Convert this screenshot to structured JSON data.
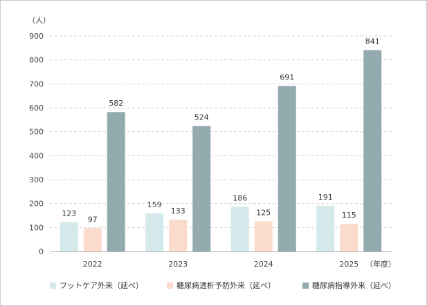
{
  "chart_data": {
    "type": "bar",
    "ylabel": "（人）",
    "xlabel": "（年度）",
    "categories": [
      "2022",
      "2023",
      "2024",
      "2025"
    ],
    "ylim": [
      0,
      900
    ],
    "yticks": [
      0,
      100,
      200,
      300,
      400,
      500,
      600,
      700,
      800,
      900
    ],
    "grid": "horizontal-dashed",
    "legend_position": "bottom",
    "series": [
      {
        "name": "フットケア外来（延べ）",
        "values": [
          123,
          159,
          186,
          191
        ],
        "color": "#d5e8ea"
      },
      {
        "name": "糖尿病透析予防外来（延べ）",
        "values": [
          97,
          133,
          125,
          115
        ],
        "color": "#fbdccc"
      },
      {
        "name": "糖尿病指導外来（延べ）",
        "values": [
          582,
          524,
          691,
          841
        ],
        "color": "#93abae"
      }
    ]
  }
}
